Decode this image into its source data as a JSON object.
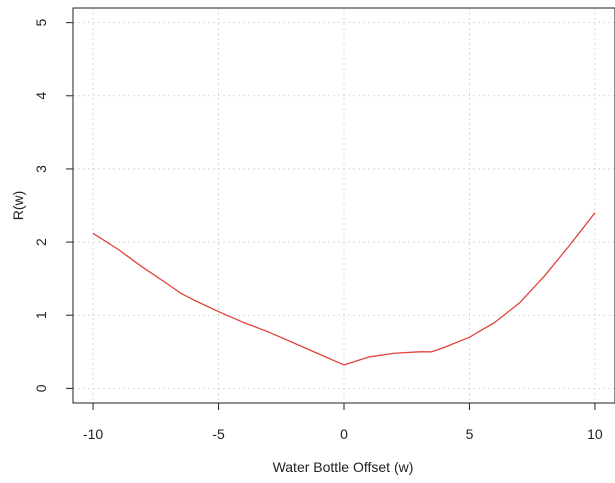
{
  "chart_data": {
    "type": "line",
    "title": "",
    "xlabel": "Water Bottle Offset (w)",
    "ylabel": "R(w)",
    "xlim": [
      -10.8,
      10.8
    ],
    "ylim": [
      -0.2,
      5.2
    ],
    "xticks": [
      -10,
      -5,
      0,
      5,
      10
    ],
    "xtick_labels": [
      "-10",
      "-5",
      "0",
      "5",
      "10"
    ],
    "yticks": [
      0,
      1,
      2,
      3,
      4,
      5
    ],
    "ytick_labels": [
      "0",
      "1",
      "2",
      "3",
      "4",
      "5"
    ],
    "grid": true,
    "legend": "none",
    "series": [
      {
        "color": "#e0443a",
        "x": [
          -10,
          -9,
          -8,
          -7,
          -6.5,
          -6,
          -5,
          -4,
          -3,
          -2,
          -1,
          0,
          1,
          2,
          3,
          3.5,
          4,
          5,
          6,
          7,
          8,
          9,
          10
        ],
        "y": [
          2.12,
          1.9,
          1.65,
          1.42,
          1.3,
          1.21,
          1.05,
          0.9,
          0.77,
          0.62,
          0.47,
          0.32,
          0.43,
          0.48,
          0.5,
          0.5,
          0.56,
          0.7,
          0.9,
          1.17,
          1.54,
          1.96,
          2.4
        ]
      }
    ]
  }
}
